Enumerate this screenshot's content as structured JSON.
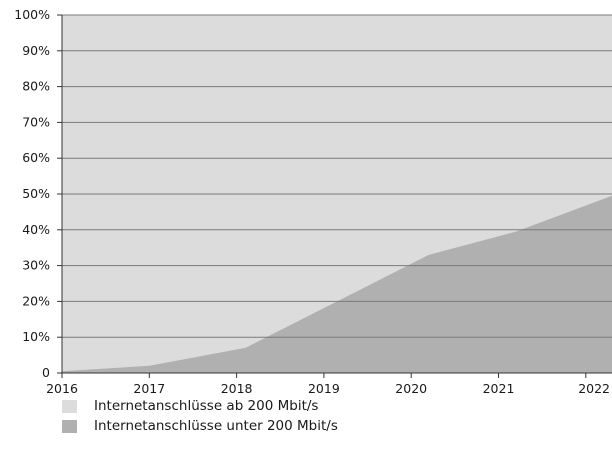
{
  "chart_data": {
    "type": "area",
    "title": "",
    "xlabel": "",
    "ylabel": "",
    "x": [
      2016,
      2017,
      2018,
      2019,
      2020,
      2021,
      2022
    ],
    "x_tick_labels": [
      "2016",
      "2017",
      "2018",
      "2019",
      "2020",
      "2021",
      "2022"
    ],
    "y_tick_labels": [
      "0",
      "10%",
      "20%",
      "30%",
      "40%",
      "50%",
      "60%",
      "70%",
      "80%",
      "90%",
      "100%"
    ],
    "ylim": [
      0,
      100
    ],
    "stacked_to": 100,
    "grid": true,
    "legend_position": "bottom-left",
    "series": [
      {
        "name": "Internetanschlüsse unter 200 Mbit/s",
        "color": "#b0b0b1",
        "points": [
          [
            2016.0,
            0.5
          ],
          [
            2017.0,
            2.0
          ],
          [
            2018.1,
            7.0
          ],
          [
            2020.2,
            33.0
          ],
          [
            2021.2,
            39.5
          ],
          [
            2022.3,
            49.5
          ]
        ]
      },
      {
        "name": "Internetanschlüsse ab 200 Mbit/s",
        "color": "#dcdcdd",
        "fills_to": 100
      }
    ]
  },
  "legend": {
    "items": [
      {
        "label": "Internetanschlüsse ab 200 Mbit/s",
        "color": "#dcdcdd"
      },
      {
        "label": "Internetanschlüsse unter 200 Mbit/s",
        "color": "#b0b0b1"
      }
    ]
  },
  "colors": {
    "gridline": "#7a7a7a",
    "axis": "#333333"
  }
}
